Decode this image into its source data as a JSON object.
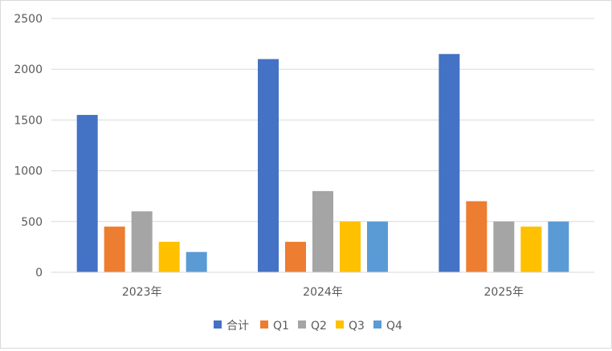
{
  "chart_data": {
    "type": "bar",
    "categories": [
      "2023年",
      "2024年",
      "2025年"
    ],
    "series": [
      {
        "name": "合计",
        "color": "#4472C4",
        "values": [
          1550,
          2100,
          2150
        ]
      },
      {
        "name": "Q1",
        "color": "#ED7D31",
        "values": [
          450,
          300,
          700
        ]
      },
      {
        "name": "Q2",
        "color": "#A5A5A5",
        "values": [
          600,
          800,
          500
        ]
      },
      {
        "name": "Q3",
        "color": "#FFC000",
        "values": [
          300,
          500,
          450
        ]
      },
      {
        "name": "Q4",
        "color": "#5B9BD5",
        "values": [
          200,
          500,
          500
        ]
      }
    ],
    "yticks": [
      "0",
      "500",
      "1000",
      "1500",
      "2000",
      "2500"
    ],
    "ylim": [
      0,
      2500
    ],
    "grid": true,
    "legend_position": "bottom"
  }
}
